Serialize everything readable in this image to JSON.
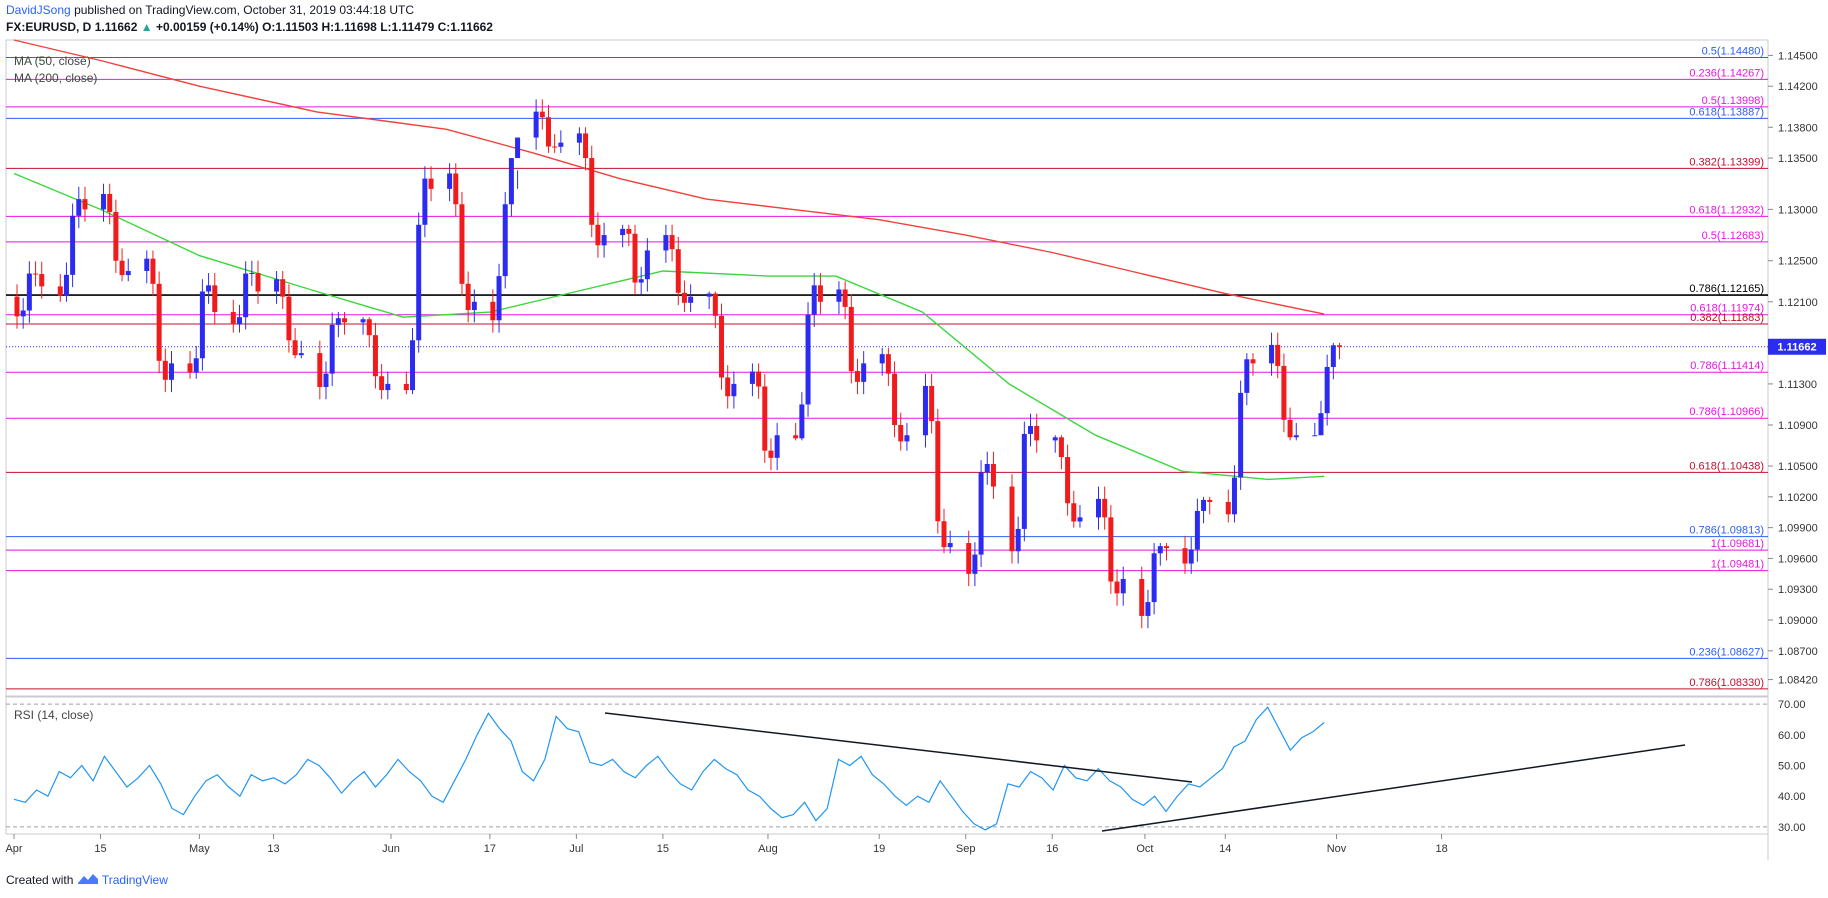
{
  "header": {
    "author": "DavidJSong",
    "published": "published on TradingView.com, October 31, 2019 03:44:18 UTC"
  },
  "symbol_bar": {
    "symbol": "FX:EURUSD, D",
    "last": "1.11662",
    "change_icon": "triangle-up-icon",
    "change": "+0.00159 (+0.14%)",
    "open": "O:1.11503",
    "high": "H:1.11698",
    "low": "L:1.11479",
    "close": "C:1.11662"
  },
  "legend": {
    "ma50": "MA (50, close)",
    "ma200": "MA (200, close)",
    "rsi": "RSI (14, close)"
  },
  "footer": {
    "created_with": "Created with",
    "brand": "TradingView",
    "logo_icon": "tradingview-logo-icon"
  },
  "colors": {
    "up": "#2c2cf0",
    "down": "#f01c1c",
    "ma50": "#3cd63c",
    "ma200": "#f0413c",
    "rsi": "#2196f3",
    "fib_magenta": "#e815e0",
    "fib_blue": "#2c60f0",
    "fib_red": "#c0102e",
    "price_badge": "#2c2cf0"
  },
  "chart_data": [
    {
      "type": "candlestick",
      "title": "",
      "symbol": "FX:EURUSD",
      "timeframe": "D",
      "x_tick_labels": [
        "Apr",
        "15",
        "May",
        "13",
        "Jun",
        "17",
        "Jul",
        "15",
        "Aug",
        "19",
        "Sep",
        "16",
        "Oct",
        "14",
        "Nov",
        "18"
      ],
      "y_tick_labels": [
        "1.14500",
        "1.14200",
        "1.13800",
        "1.13500",
        "1.13000",
        "1.12500",
        "1.12100",
        "1.11300",
        "1.10900",
        "1.10500",
        "1.10200",
        "1.09900",
        "1.09600",
        "1.09300",
        "1.09000",
        "1.08700",
        "1.08420"
      ],
      "ylim": [
        1.0826,
        1.1465
      ],
      "current_price": "1.11662",
      "weekly_ohlc_approx": [
        {
          "week": "Apr 1",
          "open": 1.1215,
          "high": 1.1255,
          "low": 1.1183,
          "close": 1.1225
        },
        {
          "week": "Apr 8",
          "open": 1.1225,
          "high": 1.1325,
          "low": 1.121,
          "close": 1.13
        },
        {
          "week": "Apr 15",
          "open": 1.13,
          "high": 1.1325,
          "low": 1.123,
          "close": 1.124
        },
        {
          "week": "Apr 22",
          "open": 1.124,
          "high": 1.126,
          "low": 1.111,
          "close": 1.115
        },
        {
          "week": "Apr 29",
          "open": 1.115,
          "high": 1.1265,
          "low": 1.1135,
          "close": 1.12
        },
        {
          "week": "May 6",
          "open": 1.12,
          "high": 1.1265,
          "low": 1.118,
          "close": 1.122
        },
        {
          "week": "May 13",
          "open": 1.122,
          "high": 1.124,
          "low": 1.1155,
          "close": 1.116
        },
        {
          "week": "May 20",
          "open": 1.116,
          "high": 1.12,
          "low": 1.1105,
          "close": 1.119
        },
        {
          "week": "May 27",
          "open": 1.119,
          "high": 1.1195,
          "low": 1.1115,
          "close": 1.113
        },
        {
          "week": "Jun 3",
          "open": 1.113,
          "high": 1.1345,
          "low": 1.112,
          "close": 1.132
        },
        {
          "week": "Jun 10",
          "open": 1.132,
          "high": 1.1345,
          "low": 1.119,
          "close": 1.121
        },
        {
          "week": "Jun 17",
          "open": 1.121,
          "high": 1.132,
          "low": 1.118,
          "close": 1.137
        },
        {
          "week": "Jun 24",
          "open": 1.137,
          "high": 1.1412,
          "low": 1.1355,
          "close": 1.1365
        },
        {
          "week": "Jul 1",
          "open": 1.1365,
          "high": 1.138,
          "low": 1.125,
          "close": 1.1275
        },
        {
          "week": "Jul 8",
          "open": 1.1275,
          "high": 1.1285,
          "low": 1.119,
          "close": 1.126
        },
        {
          "week": "Jul 15",
          "open": 1.126,
          "high": 1.1285,
          "low": 1.12,
          "close": 1.1215
        },
        {
          "week": "Jul 22",
          "open": 1.1215,
          "high": 1.122,
          "low": 1.11,
          "close": 1.113
        },
        {
          "week": "Jul 29",
          "open": 1.113,
          "high": 1.115,
          "low": 1.1025,
          "close": 1.108
        },
        {
          "week": "Aug 5",
          "open": 1.108,
          "high": 1.125,
          "low": 1.1075,
          "close": 1.121
        },
        {
          "week": "Aug 12",
          "open": 1.121,
          "high": 1.123,
          "low": 1.1105,
          "close": 1.115
        },
        {
          "week": "Aug 19",
          "open": 1.115,
          "high": 1.1165,
          "low": 1.1065,
          "close": 1.108
        },
        {
          "week": "Aug 26",
          "open": 1.108,
          "high": 1.116,
          "low": 1.0965,
          "close": 1.0975
        },
        {
          "week": "Sep 2",
          "open": 1.0975,
          "high": 1.1085,
          "low": 1.0925,
          "close": 1.103
        },
        {
          "week": "Sep 9",
          "open": 1.103,
          "high": 1.111,
          "low": 1.0925,
          "close": 1.1075
        },
        {
          "week": "Sep 16",
          "open": 1.1075,
          "high": 1.108,
          "low": 1.099,
          "close": 1.1
        },
        {
          "week": "Sep 23",
          "open": 1.1,
          "high": 1.103,
          "low": 1.0905,
          "close": 1.094
        },
        {
          "week": "Sep 30",
          "open": 1.094,
          "high": 1.0975,
          "low": 1.088,
          "close": 1.097
        },
        {
          "week": "Oct 7",
          "open": 1.097,
          "high": 1.102,
          "low": 1.0945,
          "close": 1.1015
        },
        {
          "week": "Oct 14",
          "open": 1.1015,
          "high": 1.116,
          "low": 1.0995,
          "close": 1.115
        },
        {
          "week": "Oct 21",
          "open": 1.115,
          "high": 1.118,
          "low": 1.1075,
          "close": 1.108
        },
        {
          "week": "Oct 28",
          "open": 1.108,
          "high": 1.117,
          "low": 1.108,
          "close": 1.1166
        }
      ],
      "moving_averages": [
        {
          "name": "MA (50, close)",
          "color": "#3cd63c",
          "points": [
            [
              "Apr 1",
              1.1335
            ],
            [
              "Apr 15",
              1.13
            ],
            [
              "May 1",
              1.1255
            ],
            [
              "May 20",
              1.122
            ],
            [
              "Jun 3",
              1.1195
            ],
            [
              "Jun 17",
              1.12
            ],
            [
              "Jul 1",
              1.122
            ],
            [
              "Jul 15",
              1.124
            ],
            [
              "Aug 1",
              1.1235
            ],
            [
              "Aug 12",
              1.1235
            ],
            [
              "Aug 26",
              1.12
            ],
            [
              "Sep 9",
              1.113
            ],
            [
              "Sep 23",
              1.108
            ],
            [
              "Oct 7",
              1.1045
            ],
            [
              "Oct 21",
              1.1037
            ],
            [
              "Oct 30",
              1.104
            ]
          ]
        },
        {
          "name": "MA (200, close)",
          "color": "#f0413c",
          "points": [
            [
              "Apr 1",
              1.1465
            ],
            [
              "Apr 15",
              1.1445
            ],
            [
              "May 1",
              1.142
            ],
            [
              "May 20",
              1.1395
            ],
            [
              "Jun 10",
              1.1378
            ],
            [
              "Jun 24",
              1.1355
            ],
            [
              "Jul 8",
              1.133
            ],
            [
              "Jul 22",
              1.131
            ],
            [
              "Aug 5",
              1.13
            ],
            [
              "Aug 19",
              1.129
            ],
            [
              "Sep 2",
              1.1275
            ],
            [
              "Sep 16",
              1.1258
            ],
            [
              "Sep 30",
              1.1238
            ],
            [
              "Oct 14",
              1.1218
            ],
            [
              "Oct 30",
              1.1198
            ]
          ]
        }
      ],
      "horizontal_levels": [
        {
          "label": "0.5(1.14480)",
          "value": 1.1448,
          "color": "#2c60f0"
        },
        {
          "label": "0.236(1.14267)",
          "value": 1.14267,
          "color": "#e815e0"
        },
        {
          "label": "0.5(1.13998)",
          "value": 1.13998,
          "color": "#e815e0"
        },
        {
          "label": "0.618(1.13887)",
          "value": 1.13887,
          "color": "#2c60f0"
        },
        {
          "label": "0.382(1.13399)",
          "value": 1.13399,
          "color": "#c0102e"
        },
        {
          "label": "0.618(1.12932)",
          "value": 1.12932,
          "color": "#e815e0"
        },
        {
          "label": "0.5(1.12683)",
          "value": 1.12683,
          "color": "#e815e0"
        },
        {
          "label": "0.786(1.12165)",
          "value": 1.12165,
          "color": "#000000"
        },
        {
          "label": "0.618(1.11974)",
          "value": 1.11974,
          "color": "#e815e0"
        },
        {
          "label": "0.382(1.11883)",
          "value": 1.11883,
          "color": "#c0102e"
        },
        {
          "label": "0.786(1.11414)",
          "value": 1.11414,
          "color": "#e815e0"
        },
        {
          "label": "0.786(1.10966)",
          "value": 1.10966,
          "color": "#e815e0"
        },
        {
          "label": "0.618(1.10438)",
          "value": 1.10438,
          "color": "#c0102e"
        },
        {
          "label": "0.786(1.09813)",
          "value": 1.09813,
          "color": "#2c60f0"
        },
        {
          "label": "1(1.09681)",
          "value": 1.09681,
          "color": "#e815e0"
        },
        {
          "label": "1(1.09481)",
          "value": 1.09481,
          "color": "#e815e0"
        },
        {
          "label": "0.236(1.08627)",
          "value": 1.08627,
          "color": "#2c60f0"
        },
        {
          "label": "0.786(1.08330)",
          "value": 1.0833,
          "color": "#c0102e"
        }
      ]
    },
    {
      "type": "line",
      "title": "RSI (14, close)",
      "ylim": [
        28,
        72
      ],
      "y_tick_labels": [
        "70.00",
        "60.00",
        "50.00",
        "40.00",
        "30.00"
      ],
      "bands": [
        30,
        70
      ],
      "values_approx": [
        39,
        38,
        42,
        40,
        48,
        46,
        50,
        45,
        53,
        48,
        43,
        46,
        50,
        44,
        36,
        34,
        40,
        45,
        47,
        43,
        40,
        47,
        45,
        46,
        44,
        47,
        52,
        50,
        46,
        41,
        45,
        48,
        43,
        47,
        52,
        48,
        45,
        40,
        38,
        45,
        52,
        60,
        67,
        62,
        58,
        48,
        45,
        52,
        66,
        62,
        61,
        51,
        50,
        52,
        48,
        46,
        50,
        53,
        48,
        44,
        42,
        48,
        52,
        49,
        47,
        42,
        40,
        36,
        33,
        34,
        38,
        32,
        36,
        52,
        50,
        53,
        47,
        44,
        40,
        37,
        40,
        38,
        45,
        40,
        35,
        31,
        29,
        31,
        44,
        43,
        48,
        46,
        42,
        50,
        46,
        45,
        49,
        45,
        43,
        39,
        37,
        40,
        35,
        40,
        44,
        43,
        46,
        49,
        56,
        58,
        65,
        69,
        62,
        55,
        59,
        61,
        64
      ]
    }
  ]
}
